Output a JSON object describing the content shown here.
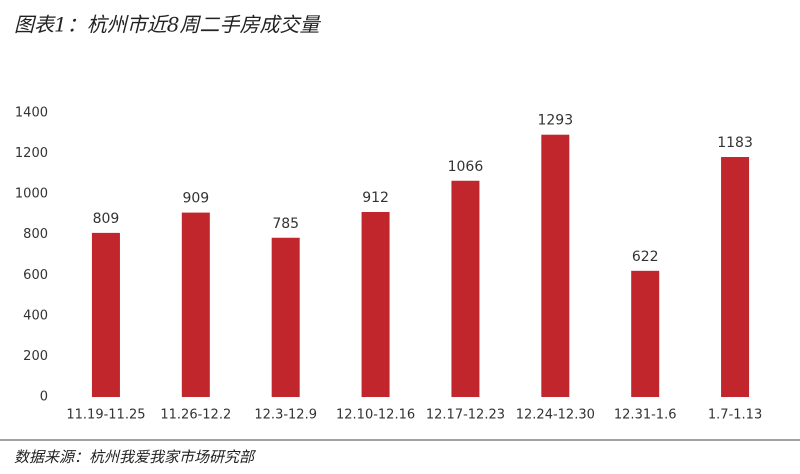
{
  "chart_data": {
    "type": "bar",
    "title": "图表1：杭州市近8周二手房成交量",
    "source": "数据来源：杭州我爱我家市场研究部",
    "categories": [
      "11.19-11.25",
      "11.26-12.2",
      "12.3-12.9",
      "12.10-12.16",
      "12.17-12.23",
      "12.24-12.30",
      "12.31-1.6",
      "1.7-1.13"
    ],
    "values": [
      809,
      909,
      785,
      912,
      1066,
      1293,
      622,
      1183
    ],
    "color": "#c0262c",
    "ylim": [
      0,
      1400
    ],
    "yticks": [
      0,
      200,
      400,
      600,
      800,
      1000,
      1200,
      1400
    ],
    "grid": false
  }
}
